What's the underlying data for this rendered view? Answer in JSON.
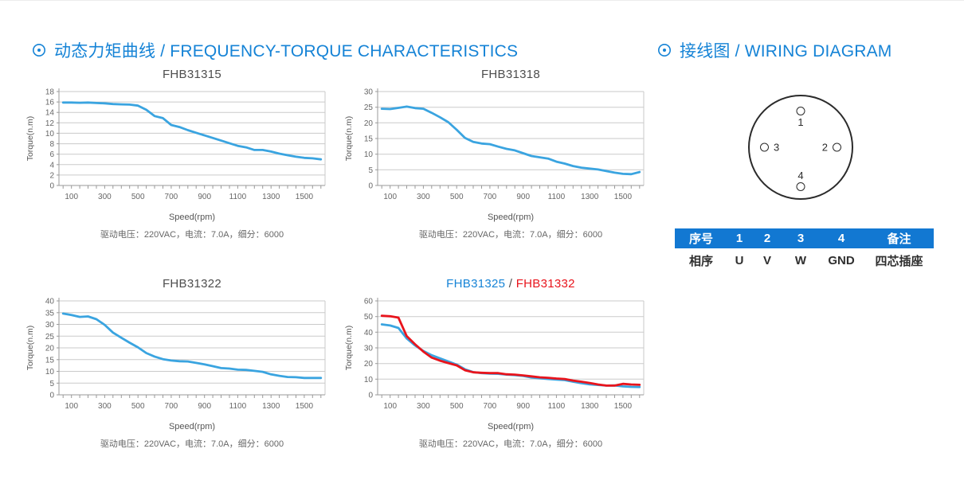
{
  "page": {
    "left_section_title": "动态力矩曲线 / FREQUENCY-TORQUE CHARACTERISTICS",
    "right_section_title": "接线图 / WIRING DIAGRAM"
  },
  "colors": {
    "accent_blue": "#1583d6",
    "curve_blue": "#3aa4e0",
    "curve_red": "#e8141c",
    "table_header_bg": "#1278d2",
    "grid_line": "#cacaca",
    "axis_line": "#9a9a9a"
  },
  "chart_data": [
    {
      "type": "line",
      "title_parts": [
        {
          "text": "FHB31315",
          "color": "#4d4d4d"
        }
      ],
      "xlabel": "Speed(rpm)",
      "ylabel": "Torque(n.m)",
      "caption": "驱动电压：220VAC，电流：7.0A，细分：6000",
      "xlim": [
        25,
        1625
      ],
      "xticks_major": [
        100,
        300,
        500,
        700,
        900,
        1100,
        1300,
        1500
      ],
      "xtick_minor_step": 50,
      "ylim": [
        0,
        18
      ],
      "ytick_step": 2,
      "grid": true,
      "x": [
        50,
        100,
        150,
        200,
        250,
        300,
        350,
        400,
        450,
        500,
        550,
        600,
        650,
        700,
        750,
        800,
        850,
        900,
        950,
        1000,
        1050,
        1100,
        1150,
        1200,
        1250,
        1300,
        1350,
        1400,
        1450,
        1500,
        1550,
        1600
      ],
      "series": [
        {
          "name": "FHB31315",
          "color": "#3aa4e0",
          "values": [
            15.9,
            15.9,
            15.85,
            15.9,
            15.8,
            15.75,
            15.6,
            15.55,
            15.5,
            15.3,
            14.5,
            13.3,
            12.9,
            11.6,
            11.2,
            10.6,
            10.1,
            9.6,
            9.1,
            8.6,
            8.1,
            7.6,
            7.3,
            6.8,
            6.8,
            6.5,
            6.1,
            5.8,
            5.5,
            5.3,
            5.2,
            5.0
          ]
        }
      ]
    },
    {
      "type": "line",
      "title_parts": [
        {
          "text": "FHB31318",
          "color": "#4d4d4d"
        }
      ],
      "xlabel": "Speed(rpm)",
      "ylabel": "Torque(n.m)",
      "caption": "驱动电压：220VAC，电流：7.0A，细分：6000",
      "xlim": [
        25,
        1625
      ],
      "xticks_major": [
        100,
        300,
        500,
        700,
        900,
        1100,
        1300,
        1500
      ],
      "xtick_minor_step": 50,
      "ylim": [
        0,
        30
      ],
      "ytick_step": 5,
      "grid": true,
      "x": [
        50,
        100,
        150,
        200,
        250,
        300,
        350,
        400,
        450,
        500,
        550,
        600,
        650,
        700,
        750,
        800,
        850,
        900,
        950,
        1000,
        1050,
        1100,
        1150,
        1200,
        1250,
        1300,
        1350,
        1400,
        1450,
        1500,
        1550,
        1600
      ],
      "series": [
        {
          "name": "FHB31318",
          "color": "#3aa4e0",
          "values": [
            24.5,
            24.4,
            24.8,
            25.2,
            24.7,
            24.5,
            23.2,
            21.8,
            20.2,
            17.8,
            15.2,
            13.9,
            13.4,
            13.2,
            12.4,
            11.7,
            11.2,
            10.3,
            9.4,
            9.0,
            8.6,
            7.6,
            7.0,
            6.2,
            5.7,
            5.4,
            5.1,
            4.6,
            4.1,
            3.7,
            3.6,
            4.3
          ]
        }
      ]
    },
    {
      "type": "line",
      "title_parts": [
        {
          "text": "FHB31322",
          "color": "#4d4d4d"
        }
      ],
      "xlabel": "Speed(rpm)",
      "ylabel": "Torque(n.m)",
      "caption": "驱动电压：220VAC，电流：7.0A，细分：6000",
      "xlim": [
        25,
        1625
      ],
      "xticks_major": [
        100,
        300,
        500,
        700,
        900,
        1100,
        1300,
        1500
      ],
      "xtick_minor_step": 50,
      "ylim": [
        0,
        40
      ],
      "ytick_step": 5,
      "grid": true,
      "x": [
        50,
        100,
        150,
        200,
        250,
        300,
        350,
        400,
        450,
        500,
        550,
        600,
        650,
        700,
        750,
        800,
        850,
        900,
        950,
        1000,
        1050,
        1100,
        1150,
        1200,
        1250,
        1300,
        1350,
        1400,
        1450,
        1500,
        1550,
        1600
      ],
      "series": [
        {
          "name": "FHB31322",
          "color": "#3aa4e0",
          "values": [
            34.6,
            34.0,
            33.2,
            33.4,
            32.2,
            29.8,
            26.5,
            24.3,
            22.2,
            20.2,
            17.8,
            16.3,
            15.2,
            14.6,
            14.3,
            14.2,
            13.6,
            13.0,
            12.2,
            11.4,
            11.2,
            10.7,
            10.6,
            10.2,
            9.8,
            8.7,
            8.1,
            7.6,
            7.5,
            7.2,
            7.2,
            7.2
          ]
        }
      ]
    },
    {
      "type": "line",
      "title_parts": [
        {
          "text": "FHB31325",
          "color": "#1583d6"
        },
        {
          "text": " / ",
          "color": "#4d4d4d"
        },
        {
          "text": "FHB31332",
          "color": "#e8141c"
        }
      ],
      "xlabel": "Speed(rpm)",
      "ylabel": "Torque(n.m)",
      "caption": "驱动电压：220VAC，电流：7.0A，细分：6000",
      "xlim": [
        25,
        1625
      ],
      "xticks_major": [
        100,
        300,
        500,
        700,
        900,
        1100,
        1300,
        1500
      ],
      "xtick_minor_step": 50,
      "ylim": [
        0,
        60
      ],
      "ytick_step": 10,
      "grid": true,
      "x": [
        50,
        100,
        150,
        200,
        250,
        300,
        350,
        400,
        450,
        500,
        550,
        600,
        650,
        700,
        750,
        800,
        850,
        900,
        950,
        1000,
        1050,
        1100,
        1150,
        1200,
        1250,
        1300,
        1350,
        1400,
        1450,
        1500,
        1550,
        1600
      ],
      "series": [
        {
          "name": "FHB31325",
          "color": "#3aa4e0",
          "values": [
            45.0,
            44.3,
            42.7,
            36.0,
            31.5,
            28.0,
            25.3,
            23.3,
            21.3,
            19.3,
            16.3,
            14.5,
            13.9,
            13.6,
            13.4,
            12.9,
            12.6,
            12.1,
            11.1,
            10.6,
            10.1,
            9.7,
            9.4,
            8.4,
            7.4,
            6.7,
            6.3,
            5.9,
            6.0,
            5.4,
            5.1,
            5.0
          ]
        },
        {
          "name": "FHB31332",
          "color": "#e8141c",
          "values": [
            50.5,
            50.2,
            49.3,
            37.5,
            32.3,
            27.6,
            23.8,
            21.8,
            20.3,
            18.8,
            15.7,
            14.4,
            14.1,
            13.9,
            13.9,
            13.1,
            12.9,
            12.4,
            11.8,
            11.2,
            10.9,
            10.4,
            10.1,
            9.1,
            8.4,
            7.6,
            6.6,
            5.9,
            5.9,
            7.0,
            6.6,
            6.4
          ]
        }
      ]
    }
  ],
  "wiring": {
    "pins": [
      {
        "num": "1",
        "position": "top"
      },
      {
        "num": "2",
        "position": "right"
      },
      {
        "num": "3",
        "position": "left"
      },
      {
        "num": "4",
        "position": "bottom"
      }
    ],
    "table": {
      "headers": [
        "序号",
        "1",
        "2",
        "3",
        "4",
        "备注"
      ],
      "rows": [
        [
          "相序",
          "U",
          "V",
          "W",
          "GND",
          "四芯插座"
        ]
      ]
    }
  }
}
